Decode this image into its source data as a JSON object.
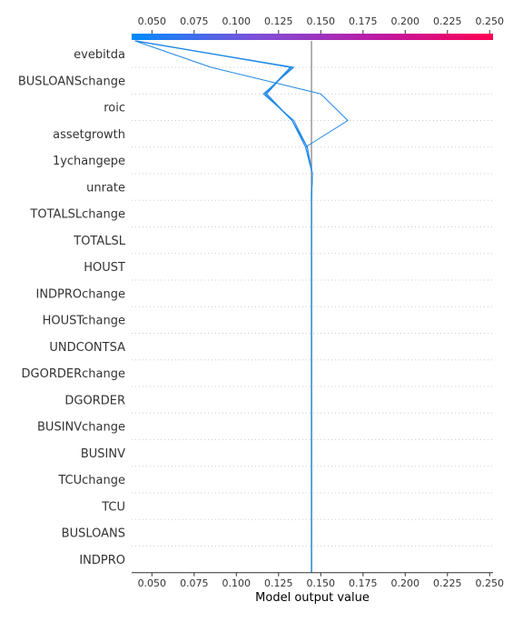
{
  "chart_data": {
    "type": "line",
    "subtype": "shap-decision-plot",
    "title": "",
    "xlabel": "Model output value",
    "ylabel": "",
    "xlim": [
      0.038,
      0.252
    ],
    "xticks": [
      0.05,
      0.075,
      0.1,
      0.125,
      0.15,
      0.175,
      0.2,
      0.225,
      0.25
    ],
    "xtick_labels": [
      "0.050",
      "0.075",
      "0.100",
      "0.125",
      "0.150",
      "0.175",
      "0.200",
      "0.225",
      "0.250"
    ],
    "base_value": 0.1445,
    "grid": "dotted horizontal lines per feature",
    "colorbar": {
      "position": "top",
      "range": [
        0.038,
        0.252
      ],
      "colors": [
        "#008bfb",
        "#7f4fd8",
        "#c017a0",
        "#ff0052"
      ]
    },
    "line_color": "#1e88e5",
    "features": [
      "evebitda",
      "BUSLOANSchange",
      "roic",
      "assetgrowth",
      "1ychangepe",
      "unrate",
      "TOTALSLchange",
      "TOTALSL",
      "HOUST",
      "INDPROchange",
      "HOUSTchange",
      "UNDCONTSA",
      "DGORDERchange",
      "DGORDER",
      "BUSINVchange",
      "BUSINV",
      "TCUchange",
      "TCU",
      "BUSLOANS",
      "INDPRO"
    ],
    "series": [
      {
        "values": [
          0.1445,
          0.1445,
          0.1445,
          0.1445,
          0.1445,
          0.1445,
          0.1445,
          0.1445,
          0.1445,
          0.1445,
          0.1445,
          0.1445,
          0.1445,
          0.1445,
          0.1445,
          0.1445,
          0.145,
          0.142,
          0.133,
          0.117,
          0.133,
          0.04
        ]
      },
      {
        "values": [
          0.1445,
          0.1445,
          0.1445,
          0.1445,
          0.1445,
          0.1445,
          0.1445,
          0.1445,
          0.1445,
          0.1445,
          0.1445,
          0.1445,
          0.1445,
          0.1445,
          0.1445,
          0.1445,
          0.145,
          0.141,
          0.133,
          0.118,
          0.132,
          0.041
        ]
      },
      {
        "values": [
          0.1445,
          0.1445,
          0.1445,
          0.1445,
          0.1445,
          0.1445,
          0.1445,
          0.1445,
          0.1445,
          0.1445,
          0.1445,
          0.1445,
          0.1445,
          0.1445,
          0.1445,
          0.1445,
          0.145,
          0.142,
          0.134,
          0.116,
          0.134,
          0.04
        ]
      },
      {
        "values": [
          0.1445,
          0.1445,
          0.1445,
          0.1445,
          0.1445,
          0.1445,
          0.1445,
          0.1445,
          0.1445,
          0.1445,
          0.1445,
          0.1445,
          0.1445,
          0.1445,
          0.1445,
          0.1445,
          0.145,
          0.141,
          0.166,
          0.15,
          0.085,
          0.04
        ]
      },
      {
        "values": [
          0.1445,
          0.1445,
          0.1445,
          0.1445,
          0.1445,
          0.1445,
          0.1445,
          0.1445,
          0.1445,
          0.1445,
          0.1445,
          0.1445,
          0.1445,
          0.1445,
          0.1445,
          0.1445,
          0.145,
          0.141,
          0.133,
          0.117,
          0.132,
          0.04
        ]
      }
    ]
  }
}
